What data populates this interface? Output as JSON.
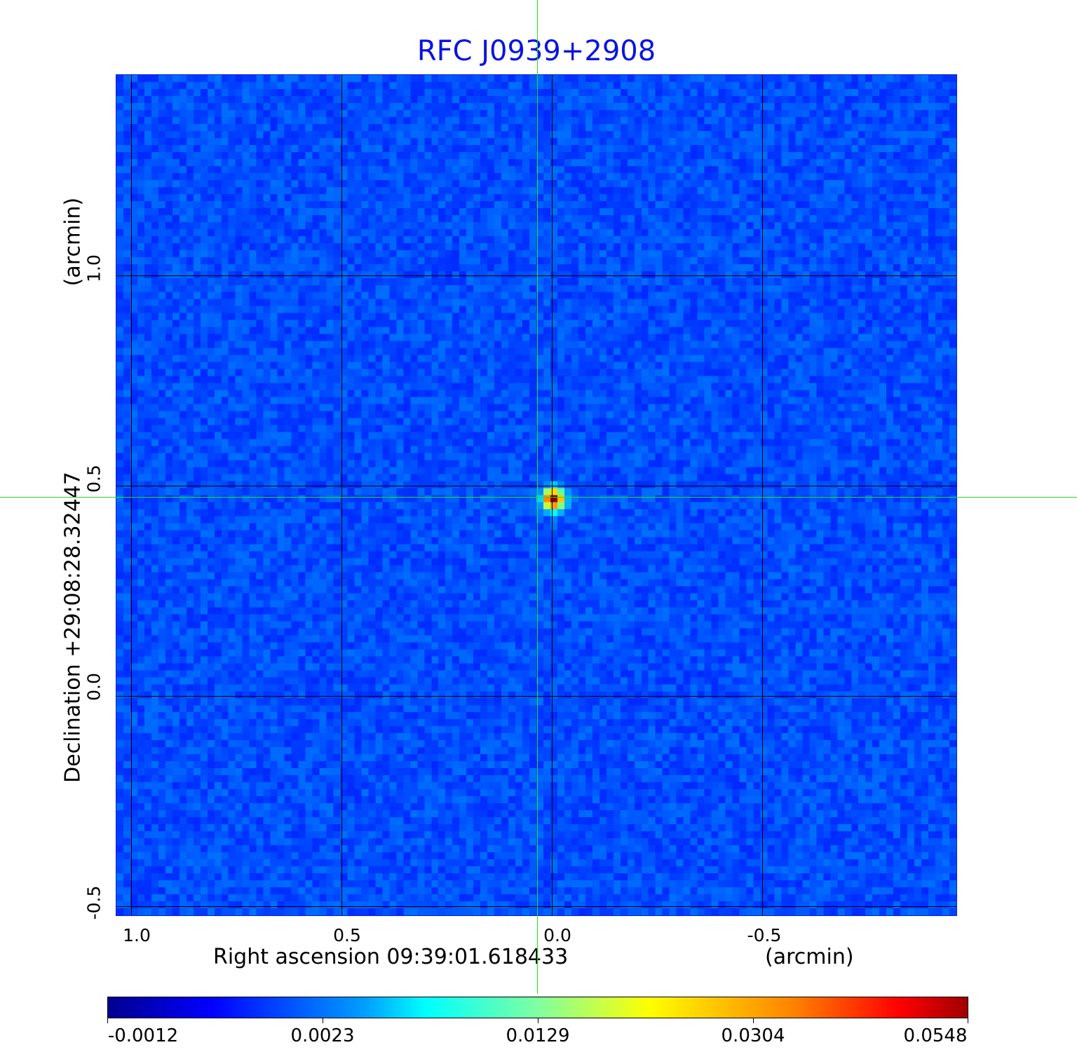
{
  "chart_data": {
    "type": "heatmap",
    "title": "RFC J0939+2908",
    "xlabel": "Right ascension  09:39:01.618433",
    "xunit": "(arcmin)",
    "ylabel": "Declination  +29:08:28.32447",
    "yunit": "(arcmin)",
    "xlim": [
      1.07,
      -0.93
    ],
    "ylim": [
      -0.52,
      1.48
    ],
    "xticks": [
      1.0,
      0.5,
      0.0,
      -0.5
    ],
    "xtick_labels": [
      "1.0",
      "0.5",
      "0.0",
      "-0.5"
    ],
    "yticks": [
      1.0,
      0.5,
      0.0,
      -0.5
    ],
    "ytick_labels": [
      "1.0",
      "0.5",
      "0.0",
      "-0.5"
    ],
    "grid": true,
    "colormap": "jet",
    "colorbar": {
      "ticks": [
        -0.0012,
        0.0023,
        0.0129,
        0.0304,
        0.0548
      ],
      "labels": [
        "-0.0012",
        "0.0023",
        "0.0129",
        "0.0304",
        "0.0548"
      ],
      "range": [
        -0.0012,
        0.0548
      ],
      "placement": "bottom"
    },
    "source": {
      "x_arcmin": 0.03,
      "y_arcmin": 0.47,
      "peak": 0.0548
    },
    "crosshair": {
      "x_arcmin": 0.033,
      "y_arcmin": 0.473
    },
    "crosshair_color": "#22dd22",
    "title_color": "#0a14e0"
  }
}
